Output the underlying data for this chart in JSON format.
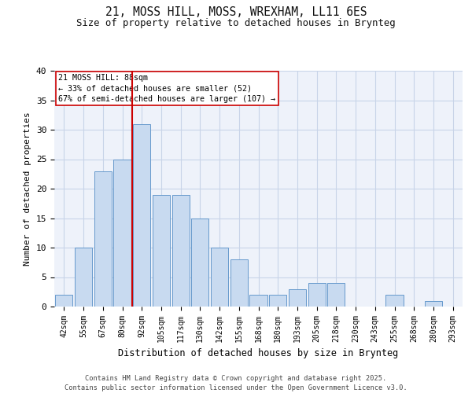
{
  "title1": "21, MOSS HILL, MOSS, WREXHAM, LL11 6ES",
  "title2": "Size of property relative to detached houses in Brynteg",
  "xlabel": "Distribution of detached houses by size in Brynteg",
  "ylabel": "Number of detached properties",
  "categories": [
    "42sqm",
    "55sqm",
    "67sqm",
    "80sqm",
    "92sqm",
    "105sqm",
    "117sqm",
    "130sqm",
    "142sqm",
    "155sqm",
    "168sqm",
    "180sqm",
    "193sqm",
    "205sqm",
    "218sqm",
    "230sqm",
    "243sqm",
    "255sqm",
    "268sqm",
    "280sqm",
    "293sqm"
  ],
  "values": [
    2,
    10,
    23,
    25,
    31,
    19,
    19,
    15,
    10,
    8,
    2,
    2,
    3,
    4,
    4,
    0,
    0,
    2,
    0,
    1,
    0
  ],
  "bar_color": "#c8daf0",
  "bar_edge_color": "#6699cc",
  "property_label": "21 MOSS HILL: 88sqm",
  "annotation_line1": "← 33% of detached houses are smaller (52)",
  "annotation_line2": "67% of semi-detached houses are larger (107) →",
  "vline_color": "#cc0000",
  "annotation_box_edge_color": "#cc0000",
  "ylim": [
    0,
    40
  ],
  "yticks": [
    0,
    5,
    10,
    15,
    20,
    25,
    30,
    35,
    40
  ],
  "grid_color": "#c8d4e8",
  "background_color": "#eef2fa",
  "footer_line1": "Contains HM Land Registry data © Crown copyright and database right 2025.",
  "footer_line2": "Contains public sector information licensed under the Open Government Licence v3.0.",
  "vline_x_index": 3.5,
  "fig_width": 6.0,
  "fig_height": 5.0,
  "fig_dpi": 100
}
